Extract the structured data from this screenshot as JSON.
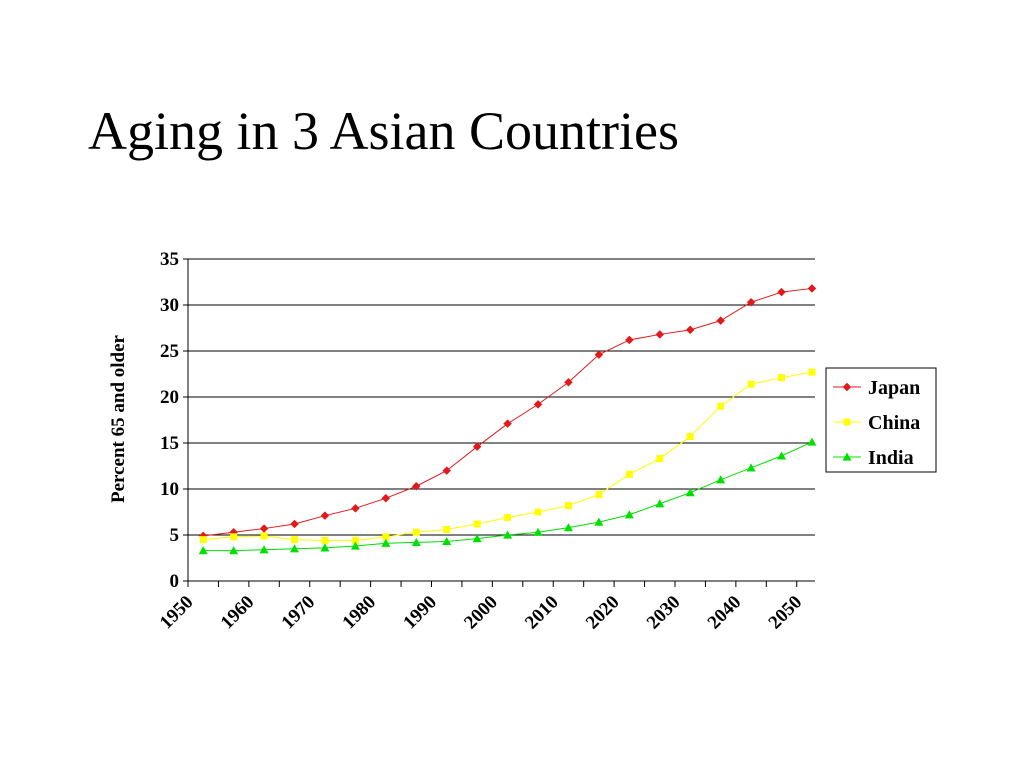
{
  "slide": {
    "title": "Aging in 3 Asian Countries"
  },
  "chart_data": {
    "type": "line",
    "title": "",
    "xlabel": "",
    "ylabel": "Percent 65 and older",
    "xlim": [
      1950,
      2053
    ],
    "ylim": [
      0,
      35
    ],
    "y_ticks": [
      0,
      5,
      10,
      15,
      20,
      25,
      30,
      35
    ],
    "x_ticks": [
      1950,
      1960,
      1970,
      1980,
      1990,
      2000,
      2010,
      2020,
      2030,
      2040,
      2050
    ],
    "grid": "horizontal",
    "legend_position": "right",
    "x": [
      1952.5,
      1957.5,
      1962.5,
      1967.5,
      1972.5,
      1977.5,
      1982.5,
      1987.5,
      1992.5,
      1997.5,
      2002.5,
      2007.5,
      2012.5,
      2017.5,
      2022.5,
      2027.5,
      2032.5,
      2037.5,
      2042.5,
      2047.5,
      2052.5
    ],
    "series": [
      {
        "name": "Japan",
        "color": "#e31a1c",
        "marker": "diamond",
        "values": [
          4.9,
          5.3,
          5.7,
          6.2,
          7.1,
          7.9,
          9.0,
          10.3,
          12.0,
          14.6,
          17.1,
          19.2,
          21.6,
          24.6,
          26.2,
          26.8,
          27.3,
          28.3,
          30.3,
          31.4,
          31.8
        ]
      },
      {
        "name": "China",
        "color": "#ffff00",
        "marker": "square",
        "values": [
          4.5,
          4.8,
          4.9,
          4.5,
          4.4,
          4.4,
          4.8,
          5.3,
          5.6,
          6.2,
          6.9,
          7.5,
          8.2,
          9.4,
          11.6,
          13.3,
          15.7,
          19.0,
          21.4,
          22.1,
          22.7
        ]
      },
      {
        "name": "India",
        "color": "#00e000",
        "marker": "triangle",
        "values": [
          3.3,
          3.3,
          3.4,
          3.5,
          3.6,
          3.8,
          4.1,
          4.2,
          4.3,
          4.6,
          5.0,
          5.3,
          5.8,
          6.4,
          7.2,
          8.4,
          9.6,
          11.0,
          12.3,
          13.6,
          15.1
        ]
      }
    ]
  }
}
